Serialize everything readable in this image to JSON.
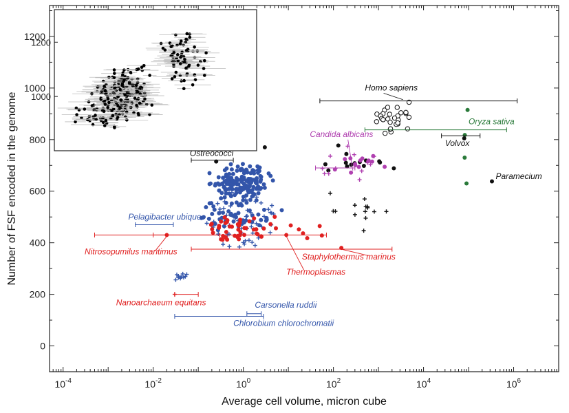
{
  "chart_data": {
    "type": "scatter",
    "title": "",
    "xlabel": "Average cell volume, micron cube",
    "ylabel": "Number of FSF encoded in the genome",
    "xscale": "log",
    "xlim": [
      5e-05,
      10000000
    ],
    "ylim": [
      -100,
      1320
    ],
    "xticks": [
      {
        "value": 0.0001,
        "base": "10",
        "exp": "-4"
      },
      {
        "value": 0.01,
        "base": "10",
        "exp": "-2"
      },
      {
        "value": 1,
        "base": "10",
        "exp": "0"
      },
      {
        "value": 100,
        "base": "10",
        "exp": "2"
      },
      {
        "value": 10000,
        "base": "10",
        "exp": "4"
      },
      {
        "value": 1000000,
        "base": "10",
        "exp": "6"
      }
    ],
    "yticks": [
      0,
      200,
      400,
      600,
      800,
      1000,
      1200
    ],
    "colors": {
      "bacteria": "#3355aa",
      "archaea": "#e02020",
      "eukaryote": "#111111",
      "fungi": "#b040b0",
      "plant": "#2a7a3a"
    },
    "groups": [
      {
        "name": "bacteria-marker",
        "color": "#3355aa",
        "marker": "dot",
        "seed": 11,
        "count": 160,
        "x_log": [
          -0.8,
          0.7
        ],
        "y": [
          540,
          710
        ]
      },
      {
        "name": "bacteria-marker",
        "color": "#3355aa",
        "marker": "dot",
        "seed": 12,
        "count": 45,
        "x_log": [
          -1.2,
          0.9
        ],
        "y": [
          440,
          560
        ]
      },
      {
        "name": "bacteria-marker",
        "color": "#3355aa",
        "marker": "plus",
        "seed": 13,
        "count": 55,
        "x_log": [
          -0.9,
          0.8
        ],
        "y": [
          350,
          620
        ]
      },
      {
        "name": "bacteria-marker",
        "color": "#3355aa",
        "marker": "plus",
        "seed": 14,
        "count": 10,
        "x_log": [
          -1.6,
          -1.2
        ],
        "y": [
          250,
          300
        ]
      },
      {
        "name": "archaea-marker",
        "color": "#e02020",
        "marker": "dot",
        "seed": 21,
        "count": 45,
        "x_log": [
          -1.1,
          0.9
        ],
        "y": [
          400,
          520
        ]
      },
      {
        "name": "archaea-marker",
        "color": "#e02020",
        "marker": "dot",
        "seed": 22,
        "count": 6,
        "x_log": [
          1.0,
          1.9
        ],
        "y": [
          370,
          490
        ]
      },
      {
        "name": "eukaryote-marker",
        "color": "#111111",
        "marker": "dot",
        "seed": 31,
        "count": 14,
        "x_log": [
          1.5,
          3.4
        ],
        "y": [
          640,
          790
        ]
      },
      {
        "name": "eukaryote-marker",
        "color": "#111111",
        "marker": "plus",
        "seed": 32,
        "count": 14,
        "x_log": [
          1.5,
          3.5
        ],
        "y": [
          410,
          640
        ]
      },
      {
        "name": "eukaryote-marker",
        "color": "#111111",
        "marker": "open",
        "seed": 33,
        "count": 28,
        "x_log": [
          2.9,
          3.8
        ],
        "y": [
          810,
          970
        ]
      },
      {
        "name": "fungi-marker",
        "color": "#b040b0",
        "marker": "dot",
        "seed": 41,
        "count": 14,
        "x_log": [
          1.6,
          3.2
        ],
        "y": [
          660,
          770
        ]
      },
      {
        "name": "fungi-marker",
        "color": "#b040b0",
        "marker": "plus",
        "seed": 42,
        "count": 12,
        "x_log": [
          1.5,
          3.0
        ],
        "y": [
          620,
          790
        ]
      },
      {
        "name": "plant-marker",
        "color": "#2a7a3a",
        "marker": "dot",
        "seed": 51,
        "count": 2,
        "x_log": [
          4.8,
          5.0
        ],
        "y": [
          630,
          920
        ]
      }
    ],
    "special_points": [
      {
        "x": 0.25,
        "y": 715,
        "color": "#111111",
        "marker": "dot"
      },
      {
        "x": 3.0,
        "y": 770,
        "color": "#111111",
        "marker": "dot"
      },
      {
        "x": 80000,
        "y": 805,
        "color": "#111111",
        "marker": "dot"
      },
      {
        "x": 330000,
        "y": 638,
        "color": "#111111",
        "marker": "dot"
      },
      {
        "x": 95000,
        "y": 915,
        "color": "#2a7a3a",
        "marker": "dot"
      },
      {
        "x": 90000,
        "y": 630,
        "color": "#2a7a3a",
        "marker": "dot"
      },
      {
        "x": 0.02,
        "y": 430,
        "color": "#e02020",
        "marker": "dot"
      },
      {
        "x": 0.03,
        "y": 200,
        "color": "#e02020",
        "marker": "plus"
      },
      {
        "x": 2.5,
        "y": 425,
        "color": "#e02020",
        "marker": "dot"
      },
      {
        "x": 9.0,
        "y": 430,
        "color": "#e02020",
        "marker": "dot"
      },
      {
        "x": 150,
        "y": 380,
        "color": "#e02020",
        "marker": "dot"
      }
    ],
    "error_bars": [
      {
        "name": "homo-sapiens-errorbar",
        "x1": 50,
        "x2": 1200000,
        "y": 950,
        "color": "#111111"
      },
      {
        "name": "oryza-errorbar",
        "x1": 500,
        "x2": 700000,
        "y": 838,
        "color": "#2a7a3a"
      },
      {
        "name": "volvox-errorbar",
        "x1": 25000,
        "x2": 180000,
        "y": 815,
        "color": "#111111"
      },
      {
        "name": "ostreococci-errorbar",
        "x1": 0.07,
        "x2": 0.6,
        "y": 720,
        "color": "#111111"
      },
      {
        "name": "candida-errorbar",
        "x1": 40,
        "x2": 300,
        "y": 690,
        "color": "#b040b0"
      },
      {
        "name": "pelagibacter-errorbar",
        "x1": 0.004,
        "x2": 0.028,
        "y": 470,
        "color": "#3355aa"
      },
      {
        "name": "nitrosopumilus-errorbar",
        "x1": 0.0005,
        "x2": 0.3,
        "y": 430,
        "color": "#e02020"
      },
      {
        "name": "thermoplasmas-errorbar",
        "x1": 0.01,
        "x2": 70,
        "y": 430,
        "color": "#e02020"
      },
      {
        "name": "staphylothermus-errorbar",
        "x1": 0.07,
        "x2": 2000,
        "y": 375,
        "color": "#e02020"
      },
      {
        "name": "nanoarchaeum-errorbar",
        "x1": 0.03,
        "x2": 0.1,
        "y": 200,
        "color": "#e02020"
      },
      {
        "name": "carsonella-errorbar",
        "x1": 1.2,
        "x2": 2.5,
        "y": 125,
        "color": "#3355aa"
      },
      {
        "name": "chlorobium-errorbar",
        "x1": 0.03,
        "x2": 2.8,
        "y": 115,
        "color": "#3355aa"
      }
    ],
    "annotations": [
      {
        "name": "homo-sapiens-label",
        "text": "Homo sapiens",
        "color": "#111111",
        "x": 500,
        "y": 990,
        "anchor": "start",
        "leader": [
          [
            1300,
            980
          ],
          [
            3500,
            955
          ]
        ]
      },
      {
        "name": "candida-albicans-label",
        "text": "Candida albicans",
        "color": "#b040b0",
        "x": 30,
        "y": 810,
        "anchor": "start",
        "leader": [
          [
            210,
            800
          ],
          [
            270,
            680
          ]
        ]
      },
      {
        "name": "oryza-sativa-label",
        "text": "Oryza sativa",
        "color": "#2a7a3a",
        "x": 100000,
        "y": 860,
        "anchor": "start",
        "leader": null
      },
      {
        "name": "volvox-label",
        "text": "Volvox",
        "color": "#111111",
        "x": 30000,
        "y": 775,
        "anchor": "start",
        "leader": null
      },
      {
        "name": "paramecium-label",
        "text": "Paramecium",
        "color": "#111111",
        "x": 400000,
        "y": 648,
        "anchor": "start",
        "leader": null
      },
      {
        "name": "ostreococci-label",
        "text": "Ostreococci",
        "color": "#111111",
        "x": 0.065,
        "y": 737,
        "anchor": "start",
        "leader": null
      },
      {
        "name": "pelagibacter-label",
        "text": "Pelagibacter ubique",
        "color": "#3355aa",
        "x": 0.0028,
        "y": 490,
        "anchor": "start",
        "leader": null
      },
      {
        "name": "nitrosopumilus-label",
        "text": "Nitrosopumilus maritimus",
        "color": "#e02020",
        "x": 0.0003,
        "y": 355,
        "anchor": "start",
        "leader": [
          [
            0.011,
            368
          ],
          [
            0.02,
            425
          ]
        ]
      },
      {
        "name": "staphylothermus-label",
        "text": "Staphylothermus marinus",
        "color": "#e02020",
        "x": 20,
        "y": 335,
        "anchor": "start",
        "leader": [
          [
            600,
            350
          ],
          [
            150,
            375
          ]
        ]
      },
      {
        "name": "thermoplasmas-label",
        "text": "Thermoplasmas",
        "color": "#e02020",
        "x": 9,
        "y": 277,
        "anchor": "start",
        "leader": [
          [
            22,
            295
          ],
          [
            9,
            425
          ]
        ]
      },
      {
        "name": "nanoarchaeum-label",
        "text": "Nanoarchaeum equitans",
        "color": "#e02020",
        "x": 0.0015,
        "y": 158,
        "anchor": "start",
        "leader": null
      },
      {
        "name": "carsonella-label",
        "text": "Carsonella ruddii",
        "color": "#3355aa",
        "x": 1.8,
        "y": 148,
        "anchor": "start",
        "leader": null
      },
      {
        "name": "chlorobium-label",
        "text": "Chlorobium chlorochromatii",
        "color": "#3355aa",
        "x": 0.6,
        "y": 77,
        "anchor": "start",
        "leader": null
      }
    ],
    "inset": {
      "xlim": [
        0,
        10
      ],
      "ylim": [
        800,
        1320
      ],
      "yticks": [
        1000,
        1200
      ],
      "count": 320,
      "seed": 77
    }
  }
}
